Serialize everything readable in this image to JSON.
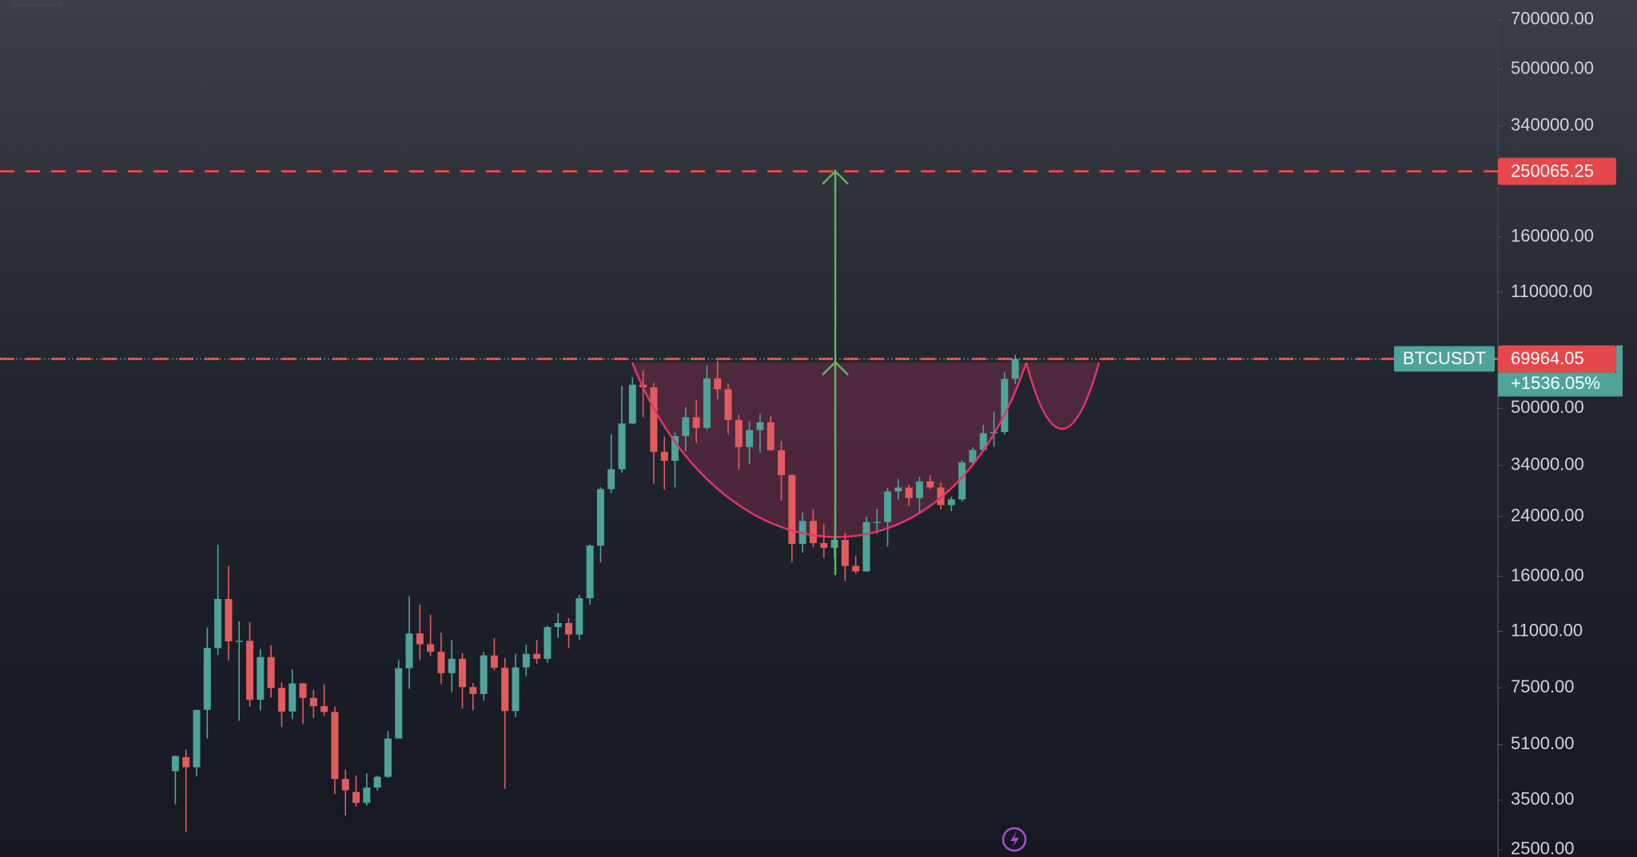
{
  "chart_data": {
    "type": "candlestick",
    "symbol": "BTCUSDT",
    "change_label": "+1536.05%",
    "log_scale": true,
    "up_color": "#4fa397",
    "down_color": "#e25c5f",
    "ylim": [
      2380,
      800000
    ],
    "yticks": [
      {
        "value": 2500,
        "label": "2500.00"
      },
      {
        "value": 3500,
        "label": "3500.00"
      },
      {
        "value": 5100,
        "label": "5100.00"
      },
      {
        "value": 7500,
        "label": "7500.00"
      },
      {
        "value": 11000,
        "label": "11000.00"
      },
      {
        "value": 16000,
        "label": "16000.00"
      },
      {
        "value": 24000,
        "label": "24000.00"
      },
      {
        "value": 34000,
        "label": "34000.00"
      },
      {
        "value": 50000,
        "label": "50000.00"
      },
      {
        "value": 110000,
        "label": "110000.00"
      },
      {
        "value": 160000,
        "label": "160000.00"
      },
      {
        "value": 340000,
        "label": "340000.00"
      },
      {
        "value": 500000,
        "label": "500000.00"
      },
      {
        "value": 700000,
        "label": "700000.00"
      }
    ],
    "lines": [
      {
        "value": 250065.25,
        "color": "#e5474b"
      },
      {
        "value": 69964.05,
        "color": "#e5474b"
      }
    ],
    "categories": [
      null,
      null,
      null,
      null,
      null,
      null,
      null,
      null,
      null,
      null,
      null,
      null,
      null,
      null,
      null,
      null,
      null,
      null,
      null,
      null,
      null,
      null,
      null,
      null,
      null,
      null,
      null,
      null,
      null,
      null,
      null,
      null,
      null,
      null,
      null,
      null,
      null,
      null,
      null,
      null,
      null,
      null,
      null,
      null,
      null,
      null,
      null,
      null,
      null,
      null,
      null,
      null,
      null,
      null,
      null,
      null,
      null,
      null,
      null,
      null,
      null,
      null,
      null,
      null,
      null,
      null,
      null,
      null,
      null,
      null,
      null,
      null,
      null,
      null,
      null,
      null,
      null,
      null,
      null,
      null
    ],
    "open": [
      4261,
      4689,
      4378,
      6463,
      9837,
      13715,
      10285,
      10325,
      6922,
      9246,
      7500,
      6391,
      7735,
      7011,
      6626,
      6369,
      4041,
      3701,
      3434,
      3814,
      4102,
      5320,
      8574,
      10854,
      10085,
      9588,
      8289,
      9140,
      7541,
      7195,
      9351,
      8600,
      6412,
      8620,
      9448,
      9138,
      11335,
      11649,
      10776,
      13791,
      19695,
      28923,
      33092,
      45134,
      58739,
      57697,
      37253,
      35045,
      41461,
      47100,
      43820,
      61300,
      56950,
      46216,
      38466,
      43160,
      45510,
      37630,
      31801,
      19942,
      23296,
      20048,
      19422,
      20491,
      17165,
      16541,
      23125,
      23141,
      28465,
      29233,
      27210,
      30472,
      29232,
      25941,
      26962,
      34639,
      37723,
      42283,
      42580,
      61130
    ],
    "high": [
      4745,
      4939,
      6470,
      11300,
      19798,
      17176,
      11786,
      11710,
      9759,
      10020,
      7786,
      8507,
      7750,
      7410,
      7680,
      6615,
      4312,
      4143,
      4198,
      4140,
      5600,
      9074,
      13970,
      13200,
      12325,
      10905,
      10370,
      9505,
      7750,
      9578,
      10500,
      9188,
      9460,
      10067,
      10380,
      11444,
      12468,
      12050,
      14100,
      19863,
      29300,
      41950,
      58352,
      61844,
      64854,
      59500,
      41330,
      42448,
      50500,
      52920,
      67000,
      69000,
      59053,
      47990,
      45821,
      48190,
      47444,
      40023,
      31982,
      24668,
      25211,
      22799,
      21085,
      21480,
      18388,
      23960,
      25250,
      29184,
      31000,
      29820,
      31431,
      31804,
      30244,
      27483,
      35198,
      38450,
      44700,
      48969,
      63913,
      72000
    ],
    "low": [
      3400,
      2817,
      4110,
      5325,
      9380,
      9035,
      6000,
      6600,
      6430,
      7032,
      5750,
      6070,
      5880,
      6111,
      6200,
      3652,
      3156,
      3349,
      3373,
      3733,
      4067,
      5320,
      7444,
      9071,
      9320,
      7710,
      7300,
      6515,
      6435,
      6871,
      8450,
      3782,
      6150,
      8117,
      8833,
      8893,
      10518,
      9825,
      10374,
      13195,
      17572,
      28130,
      32296,
      44950,
      47044,
      30000,
      28805,
      29278,
      37332,
      39600,
      43283,
      53256,
      42000,
      32917,
      34322,
      37155,
      37578,
      26700,
      17622,
      18781,
      19520,
      18125,
      18190,
      15476,
      16256,
      16500,
      21352,
      19549,
      26942,
      25811,
      24800,
      28861,
      25166,
      24901,
      26538,
      34097,
      37629,
      38555,
      41884,
      59005
    ],
    "close": [
      4724,
      4378,
      6463,
      9838,
      13716,
      10285,
      10326,
      6923,
      9246,
      7494,
      6391,
      7730,
      7011,
      6626,
      6371,
      4041,
      3742,
      3437,
      3813,
      4103,
      5320,
      8574,
      10854,
      10085,
      9588,
      8289,
      9140,
      7541,
      7195,
      9352,
      8599,
      6410,
      8620,
      9448,
      9138,
      11335,
      11650,
      10776,
      13791,
      19695,
      28923,
      33092,
      45135,
      58740,
      57694,
      37253,
      35045,
      41461,
      47100,
      43824,
      61300,
      56950,
      46216,
      38466,
      43160,
      45510,
      37630,
      31801,
      19942,
      23293,
      20050,
      19422,
      20490,
      17164,
      16542,
      23125,
      23141,
      28465,
      29233,
      27210,
      30472,
      29232,
      25941,
      26962,
      34639,
      37723,
      42283,
      42580,
      61130,
      69964.05
    ]
  }
}
